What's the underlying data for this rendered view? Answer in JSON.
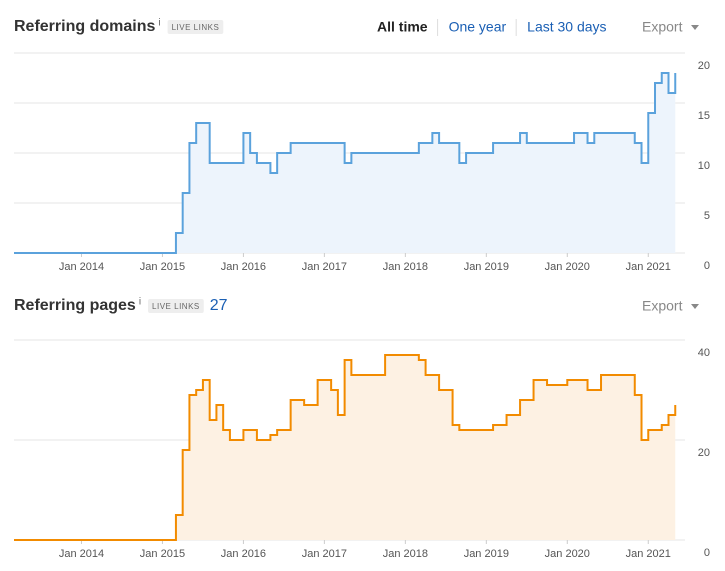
{
  "chart_data": [
    {
      "type": "line",
      "title": "Referring domains",
      "info": "i",
      "badge": "LIVE LINKS",
      "filters": [
        "All time",
        "One year",
        "Last 30 days"
      ],
      "export": "Export",
      "xlim": [
        "2013-03",
        "2021-06"
      ],
      "xticks": [
        {
          "value": "2014-01",
          "label": "Jan 2014"
        },
        {
          "value": "2015-01",
          "label": "Jan 2015"
        },
        {
          "value": "2016-01",
          "label": "Jan 2016"
        },
        {
          "value": "2017-01",
          "label": "Jan 2017"
        },
        {
          "value": "2018-01",
          "label": "Jan 2018"
        },
        {
          "value": "2019-01",
          "label": "Jan 2019"
        },
        {
          "value": "2020-01",
          "label": "Jan 2020"
        },
        {
          "value": "2021-01",
          "label": "Jan 2021"
        }
      ],
      "ylim": [
        0,
        20
      ],
      "yticks": [
        0,
        5,
        10,
        15,
        20
      ],
      "grid": true,
      "step": true,
      "x": [
        "2013-03",
        "2015-03",
        "2015-04",
        "2015-05",
        "2015-06",
        "2015-08",
        "2016-01",
        "2016-02",
        "2016-03",
        "2016-05",
        "2016-06",
        "2016-08",
        "2017-04",
        "2017-05",
        "2018-03",
        "2018-05",
        "2018-06",
        "2018-09",
        "2018-10",
        "2019-02",
        "2019-06",
        "2019-07",
        "2020-02",
        "2020-04",
        "2020-05",
        "2020-11",
        "2020-12",
        "2021-01",
        "2021-02",
        "2021-03",
        "2021-04",
        "2021-05"
      ],
      "series": [
        {
          "color": "#5ba2dc",
          "fill": "#edf4fc",
          "values": [
            0,
            2,
            6,
            11,
            13,
            9,
            12,
            10,
            9,
            8,
            10,
            11,
            9,
            10,
            11,
            12,
            11,
            9,
            10,
            11,
            12,
            11,
            12,
            11,
            12,
            11,
            9,
            14,
            17,
            18,
            16,
            18
          ]
        }
      ]
    },
    {
      "type": "line",
      "title": "Referring pages",
      "info": "i",
      "badge": "LIVE LINKS",
      "count": 27,
      "export": "Export",
      "xlim": [
        "2013-03",
        "2021-06"
      ],
      "xticks": [
        {
          "value": "2014-01",
          "label": "Jan 2014"
        },
        {
          "value": "2015-01",
          "label": "Jan 2015"
        },
        {
          "value": "2016-01",
          "label": "Jan 2016"
        },
        {
          "value": "2017-01",
          "label": "Jan 2017"
        },
        {
          "value": "2018-01",
          "label": "Jan 2018"
        },
        {
          "value": "2019-01",
          "label": "Jan 2019"
        },
        {
          "value": "2020-01",
          "label": "Jan 2020"
        },
        {
          "value": "2021-01",
          "label": "Jan 2021"
        }
      ],
      "ylim": [
        0,
        40
      ],
      "yticks": [
        0,
        20,
        40
      ],
      "grid": true,
      "step": true,
      "x": [
        "2013-03",
        "2015-03",
        "2015-04",
        "2015-05",
        "2015-06",
        "2015-07",
        "2015-08",
        "2015-09",
        "2015-10",
        "2015-11",
        "2016-01",
        "2016-03",
        "2016-05",
        "2016-06",
        "2016-08",
        "2016-10",
        "2016-12",
        "2017-02",
        "2017-03",
        "2017-04",
        "2017-05",
        "2017-10",
        "2018-03",
        "2018-04",
        "2018-06",
        "2018-08",
        "2018-09",
        "2019-02",
        "2019-04",
        "2019-06",
        "2019-08",
        "2019-10",
        "2020-01",
        "2020-04",
        "2020-06",
        "2020-10",
        "2020-11",
        "2020-12",
        "2021-01",
        "2021-03",
        "2021-04",
        "2021-05"
      ],
      "series": [
        {
          "color": "#f28b00",
          "fill": "#fdf1e3",
          "values": [
            0,
            5,
            18,
            29,
            30,
            32,
            24,
            27,
            22,
            20,
            22,
            20,
            21,
            22,
            28,
            27,
            32,
            30,
            25,
            36,
            33,
            37,
            36,
            33,
            30,
            23,
            22,
            23,
            25,
            28,
            32,
            31,
            32,
            30,
            33,
            33,
            29,
            20,
            22,
            23,
            25,
            27
          ]
        }
      ]
    }
  ]
}
